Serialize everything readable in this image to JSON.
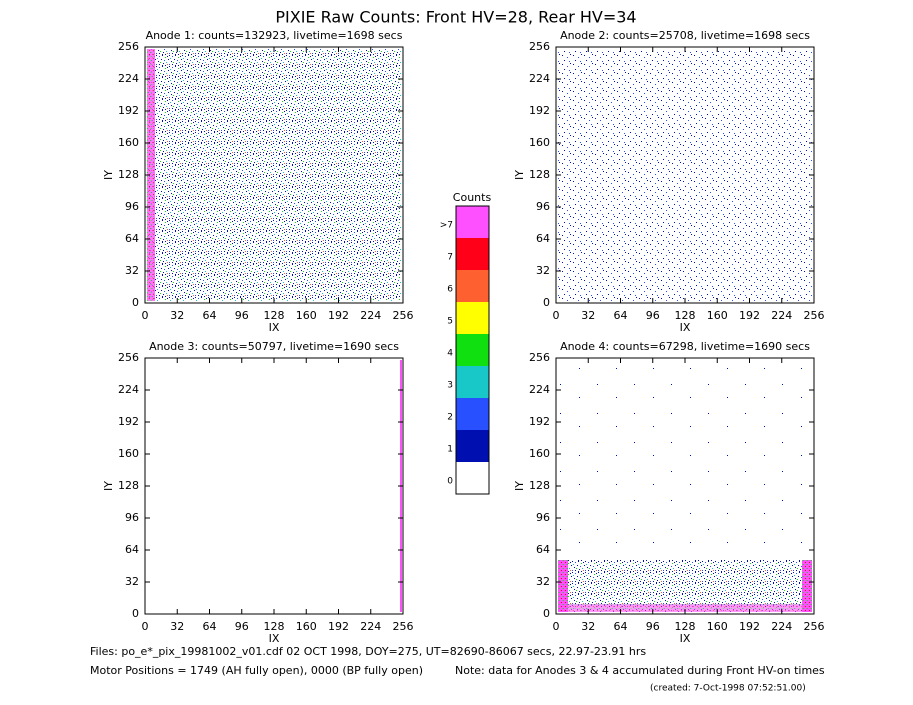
{
  "title": "PIXIE Raw Counts:  Front HV=28, Rear HV=34",
  "chart_data": [
    {
      "type": "image",
      "title": "Anode 1: counts=132923, livetime=1698 secs",
      "xlabel": "IX",
      "ylabel": "IY",
      "xlim": [
        0,
        256
      ],
      "ylim": [
        0,
        256
      ],
      "xticks": [
        0,
        32,
        64,
        96,
        128,
        160,
        192,
        224,
        256
      ],
      "yticks": [
        0,
        32,
        64,
        96,
        128,
        160,
        192,
        224,
        256
      ]
    },
    {
      "type": "image",
      "title": "Anode 2: counts=25708, livetime=1698 secs",
      "xlabel": "IX",
      "ylabel": "IY",
      "xlim": [
        0,
        256
      ],
      "ylim": [
        0,
        256
      ],
      "xticks": [
        0,
        32,
        64,
        96,
        128,
        160,
        192,
        224,
        256
      ],
      "yticks": [
        0,
        32,
        64,
        96,
        128,
        160,
        192,
        224,
        256
      ]
    },
    {
      "type": "image",
      "title": "Anode 3: counts=50797, livetime=1690 secs",
      "xlabel": "IX",
      "ylabel": "IY",
      "xlim": [
        0,
        256
      ],
      "ylim": [
        0,
        256
      ],
      "xticks": [
        0,
        32,
        64,
        96,
        128,
        160,
        192,
        224,
        256
      ],
      "yticks": [
        0,
        32,
        64,
        96,
        128,
        160,
        192,
        224,
        256
      ]
    },
    {
      "type": "image",
      "title": "Anode 4: counts=67298, livetime=1690 secs",
      "xlabel": "IX",
      "ylabel": "IY",
      "xlim": [
        0,
        256
      ],
      "ylim": [
        0,
        256
      ],
      "xticks": [
        0,
        32,
        64,
        96,
        128,
        160,
        192,
        224,
        256
      ],
      "yticks": [
        0,
        32,
        64,
        96,
        128,
        160,
        192,
        224,
        256
      ]
    }
  ],
  "colorbar": {
    "title": "Counts",
    "ticks": [
      0,
      1,
      2,
      3,
      4,
      5,
      6,
      7,
      {
        "value": 8,
        "label": ">7"
      }
    ],
    "colors": [
      "#ffffff",
      "#0010b0",
      "#2850ff",
      "#18c8c8",
      "#10e010",
      "#ffff00",
      "#ff6030",
      "#ff0018",
      "#ff50ff"
    ]
  },
  "footer": {
    "files": "Files: po_e*_pix_19981002_v01.cdf    02 OCT 1998, DOY=275, UT=82690-86067 secs, 22.97-23.91 hrs",
    "motor": "Motor Positions = 1749 (AH fully open), 0000 (BP fully open)",
    "note": "Note: data for Anodes 3 & 4 accumulated during Front HV-on times",
    "created": "(created:  7-Oct-1998 07:52:51.00)"
  }
}
